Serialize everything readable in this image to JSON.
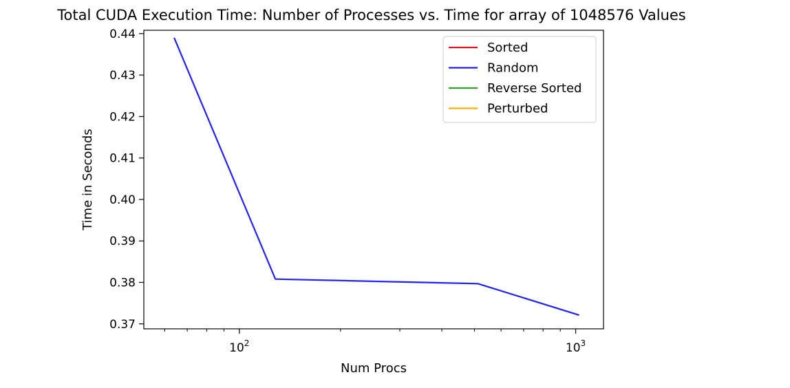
{
  "chart_data": {
    "type": "line",
    "title": "Total CUDA Execution Time: Number of Processes vs. Time for array of 1048576 Values",
    "xlabel": "Num Procs",
    "ylabel": "Time in Seconds",
    "xscale": "log",
    "xlim": [
      52,
      1210
    ],
    "ylim": [
      0.3688,
      0.4408
    ],
    "yticks": [
      0.37,
      0.38,
      0.39,
      0.4,
      0.41,
      0.42,
      0.43,
      0.44
    ],
    "ytick_labels": [
      "0.37",
      "0.38",
      "0.39",
      "0.40",
      "0.41",
      "0.42",
      "0.43",
      "0.44"
    ],
    "xticks_major": [
      {
        "value": 100,
        "base": "10",
        "exp": "2"
      },
      {
        "value": 1000,
        "base": "10",
        "exp": "3"
      }
    ],
    "xticks_minor": [
      60,
      70,
      80,
      90,
      200,
      300,
      400,
      500,
      600,
      700,
      800,
      900
    ],
    "grid": false,
    "legend_position": "top-right",
    "series": [
      {
        "name": "Sorted",
        "color": "#e41a1c",
        "x": [],
        "y": []
      },
      {
        "name": "Random",
        "color": "#1f1fff",
        "x": [
          64,
          128,
          512,
          1024
        ],
        "y": [
          0.439,
          0.3808,
          0.3797,
          0.3721
        ]
      },
      {
        "name": "Reverse Sorted",
        "color": "#2ca02c",
        "x": [],
        "y": []
      },
      {
        "name": "Perturbed",
        "color": "#ffb000",
        "x": [],
        "y": []
      }
    ]
  }
}
